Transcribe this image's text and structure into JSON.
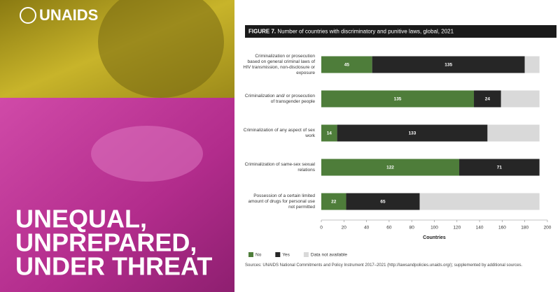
{
  "brand": "UNAIDS",
  "headline": [
    "UNEQUAL,",
    "UNPREPARED,",
    "UNDER THREAT"
  ],
  "chart_data": {
    "type": "stacked_barh",
    "figure_label": "FIGURE 7.",
    "title": "Number of countries with discriminatory and punitive laws, global, 2021",
    "categories": [
      "Criminalization or prosecution based on general criminal laws of HIV transmission, non-disclosure or exposure",
      "Criminalization and/ or prosecution of transgender people",
      "Criminalization of any aspect of sex work",
      "Criminalization of same-sex sexual relations",
      "Possession of a certain limited amount of drugs for personal use not permitted"
    ],
    "series": [
      {
        "name": "No",
        "color": "#4e7d3a",
        "labeled": true,
        "values": [
          45,
          135,
          14,
          122,
          22
        ]
      },
      {
        "name": "Yes",
        "color": "#262626",
        "labeled": true,
        "values": [
          135,
          24,
          133,
          71,
          65
        ]
      },
      {
        "name": "Data not available",
        "color": "#d9d9d9",
        "labeled": false,
        "values": [
          13,
          34,
          46,
          0,
          106
        ]
      }
    ],
    "xlim": [
      0,
      200
    ],
    "xticks": [
      0,
      20,
      40,
      60,
      80,
      100,
      120,
      140,
      160,
      180,
      200
    ],
    "xlabel": "Countries",
    "source": "Sources: UNAIDS National Commitments and Policy Instrument 2017–2021 (http://lawsandpolicies.unaids.org/); supplemented by additional sources."
  }
}
